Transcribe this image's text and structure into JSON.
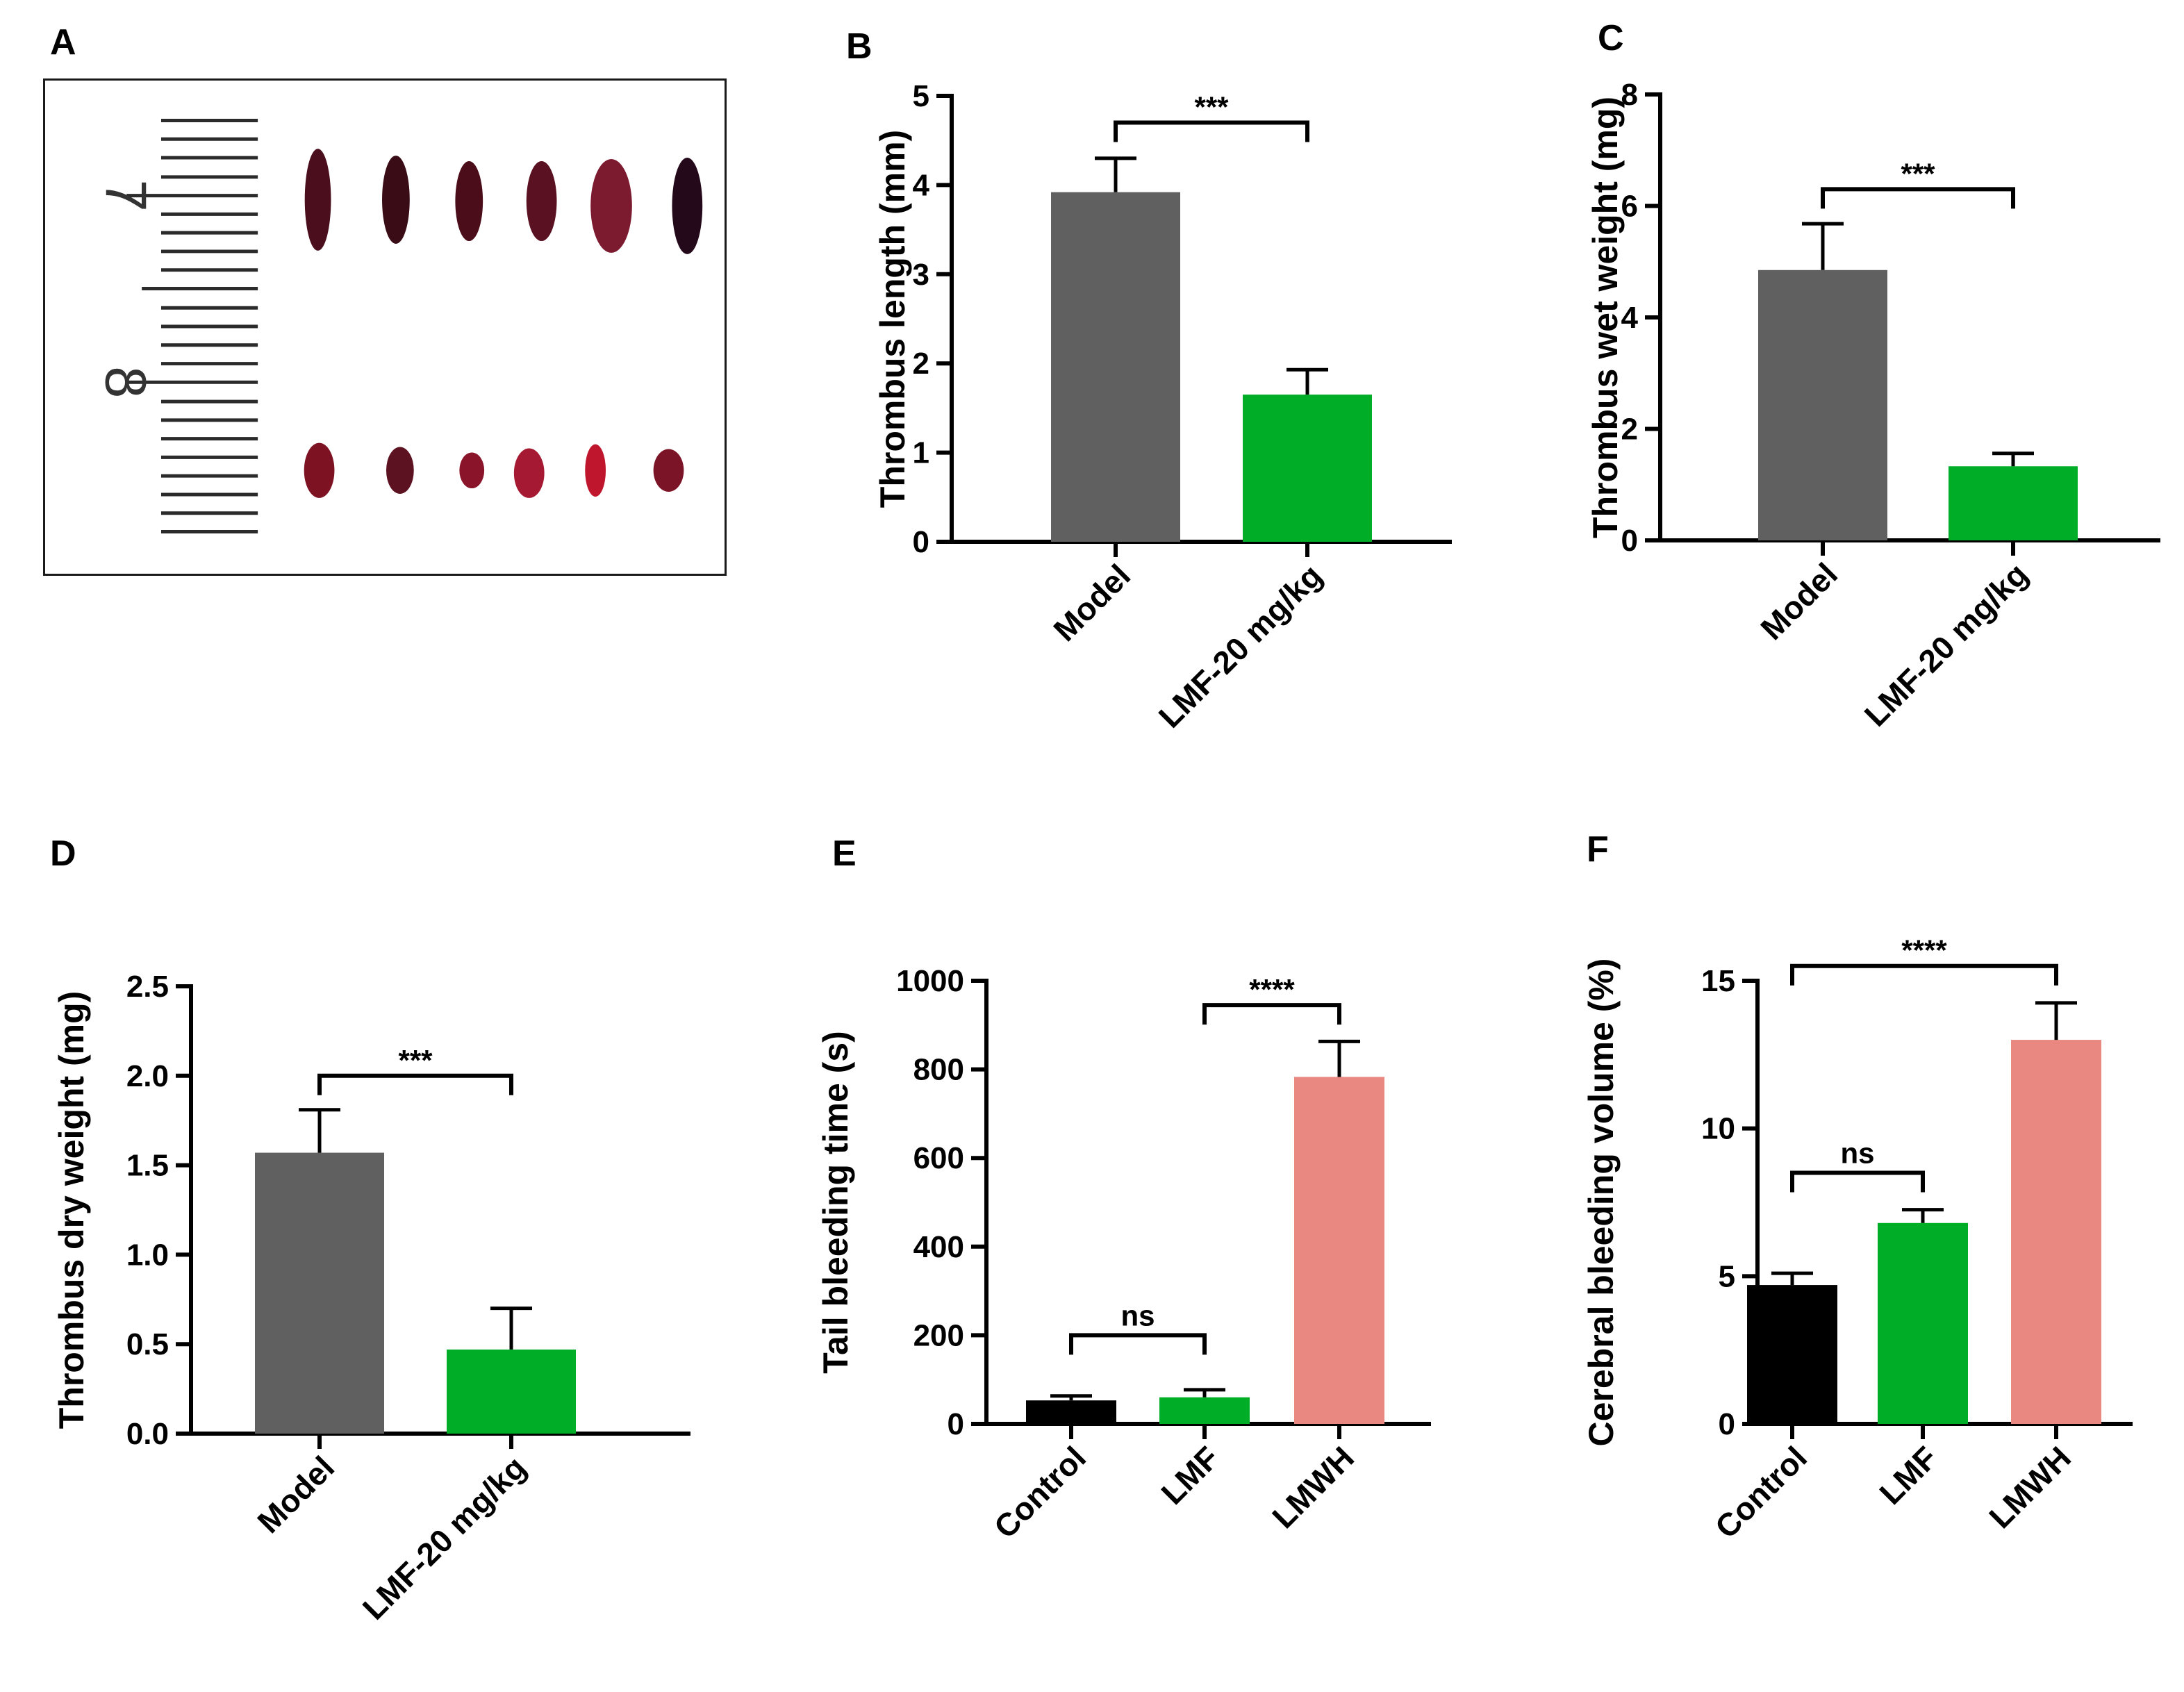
{
  "figure_panels": [
    "A",
    "B",
    "C",
    "D",
    "E",
    "F"
  ],
  "photo": {
    "ruler_numbers": [
      "7",
      "8"
    ]
  },
  "chart_data": [
    {
      "panel": "B",
      "type": "bar",
      "categories": [
        "Model",
        "LMF-20 mg/kg"
      ],
      "values": [
        3.92,
        1.65
      ],
      "errors": [
        0.38,
        0.28
      ],
      "colors": [
        "#606060",
        "#00ad26"
      ],
      "ylabel": "Thrombus length (mm)",
      "ylim": [
        0,
        5
      ],
      "yticks": [
        "0",
        "1",
        "2",
        "3",
        "4",
        "5"
      ],
      "comparisons": [
        {
          "from": 0,
          "to": 1,
          "label": "***",
          "level": 4.7
        }
      ]
    },
    {
      "panel": "C",
      "type": "bar",
      "categories": [
        "Model",
        "LMF-20 mg/kg"
      ],
      "values": [
        4.85,
        1.33
      ],
      "errors": [
        0.83,
        0.23
      ],
      "colors": [
        "#606060",
        "#00ad26"
      ],
      "ylabel": "Thrombus wet weight (mg)",
      "ylim": [
        0,
        8
      ],
      "yticks": [
        "0",
        "2",
        "4",
        "6",
        "8"
      ],
      "comparisons": [
        {
          "from": 0,
          "to": 1,
          "label": "***",
          "level": 6.3
        }
      ]
    },
    {
      "panel": "D",
      "type": "bar",
      "categories": [
        "Model",
        "LMF-20 mg/kg"
      ],
      "values": [
        1.57,
        0.47
      ],
      "errors": [
        0.24,
        0.23
      ],
      "colors": [
        "#606060",
        "#00ad26"
      ],
      "ylabel": "Thrombus dry weight (mg)",
      "ylim": [
        0,
        2.5
      ],
      "yticks": [
        "0.0",
        "0.5",
        "1.0",
        "1.5",
        "2.0",
        "2.5"
      ],
      "comparisons": [
        {
          "from": 0,
          "to": 1,
          "label": "***",
          "level": 2.0
        }
      ]
    },
    {
      "panel": "E",
      "type": "bar",
      "categories": [
        "Control",
        "LMF",
        "LMWH"
      ],
      "values": [
        53,
        60,
        783
      ],
      "errors": [
        10,
        17,
        80
      ],
      "colors": [
        "#000000",
        "#00ad26",
        "#e88880"
      ],
      "ylabel": "Tail bleeding time (s)",
      "ylim": [
        0,
        1000
      ],
      "yticks": [
        "0",
        "200",
        "400",
        "600",
        "800",
        "1000"
      ],
      "comparisons": [
        {
          "from": 0,
          "to": 1,
          "label": "ns",
          "level": 200
        },
        {
          "from": 1,
          "to": 2,
          "label": "****",
          "level": 945
        }
      ]
    },
    {
      "panel": "F",
      "type": "bar",
      "categories": [
        "Control",
        "LMF",
        "LMWH"
      ],
      "values": [
        4.7,
        6.8,
        13.0
      ],
      "errors": [
        0.4,
        0.45,
        1.25
      ],
      "colors": [
        "#000000",
        "#00ad26",
        "#e88880"
      ],
      "ylabel": "Cerebral bleeding volume (%)",
      "ylim": [
        0,
        15
      ],
      "yticks": [
        "0",
        "5",
        "10",
        "15"
      ],
      "comparisons": [
        {
          "from": 0,
          "to": 1,
          "label": "ns",
          "level": 8.5
        },
        {
          "from": 0,
          "to": 2,
          "label": "****",
          "level": 15.5
        }
      ]
    }
  ]
}
